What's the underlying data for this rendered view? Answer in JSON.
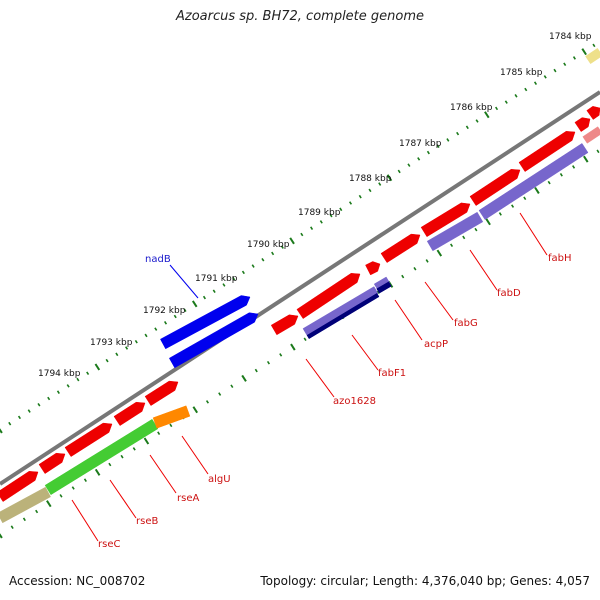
{
  "title": "Azoarcus sp. BH72, complete genome",
  "footer": {
    "accession": "Accession: NC_008702",
    "summary": "Topology: circular; Length: 4,376,040 bp; Genes: 4,057"
  },
  "scale_ticks": [
    "1784 kbp",
    "1785 kbp",
    "1786 kbp",
    "1787 kbp",
    "1788 kbp",
    "1789 kbp",
    "1790 kbp",
    "1791 kbp",
    "1792 kbp",
    "1793 kbp",
    "1794 kbp"
  ],
  "gene_labels": [
    {
      "name": "nadB",
      "color": "#1a1acc"
    },
    {
      "name": "fabH",
      "color": "#cc1111"
    },
    {
      "name": "fabD",
      "color": "#cc1111"
    },
    {
      "name": "fabG",
      "color": "#cc1111"
    },
    {
      "name": "acpP",
      "color": "#cc1111"
    },
    {
      "name": "fabF1",
      "color": "#cc1111"
    },
    {
      "name": "azo1628",
      "color": "#cc1111"
    },
    {
      "name": "algU",
      "color": "#cc1111"
    },
    {
      "name": "rseA",
      "color": "#cc1111"
    },
    {
      "name": "rseB",
      "color": "#cc1111"
    },
    {
      "name": "rseC",
      "color": "#cc1111"
    }
  ],
  "colors": {
    "cds": "#ee0000",
    "nadB": "#0000ee",
    "gene_purple": "#7766cc",
    "gene_navy": "#000077",
    "gene_green": "#44cc33",
    "gene_orange": "#ff8800",
    "gene_olive": "#bbb27a",
    "gene_pale_yellow": "#eee08a",
    "backbone": "#777777",
    "tick": "#1b7a1b"
  }
}
